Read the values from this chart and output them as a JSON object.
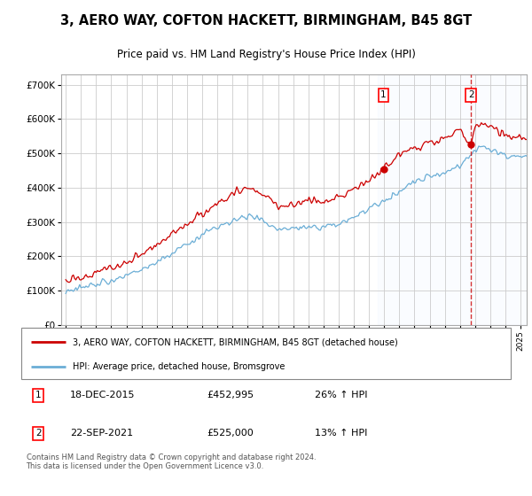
{
  "title": "3, AERO WAY, COFTON HACKETT, BIRMINGHAM, B45 8GT",
  "subtitle": "Price paid vs. HM Land Registry's House Price Index (HPI)",
  "hpi_color": "#6baed6",
  "price_color": "#cc0000",
  "plot_bg": "#ffffff",
  "shade_color": "#ddeeff",
  "ylim": [
    0,
    730000
  ],
  "yticks": [
    0,
    100000,
    200000,
    300000,
    400000,
    500000,
    600000,
    700000
  ],
  "sale1_date": "18-DEC-2015",
  "sale1_price": 452995,
  "sale1_hpi_pct": "26%",
  "sale2_date": "22-SEP-2021",
  "sale2_price": 525000,
  "sale2_hpi_pct": "13%",
  "legend_label_price": "3, AERO WAY, COFTON HACKETT, BIRMINGHAM, B45 8GT (detached house)",
  "legend_label_hpi": "HPI: Average price, detached house, Bromsgrove",
  "footer": "Contains HM Land Registry data © Crown copyright and database right 2024.\nThis data is licensed under the Open Government Licence v3.0.",
  "sale1_x": 2015.96,
  "sale2_x": 2021.72,
  "sale1_y": 452995,
  "sale2_y": 525000,
  "shade_start_x": 2015.5,
  "dashed_line_x": 2021.72,
  "xlim_left": 1994.7,
  "xlim_right": 2025.4
}
